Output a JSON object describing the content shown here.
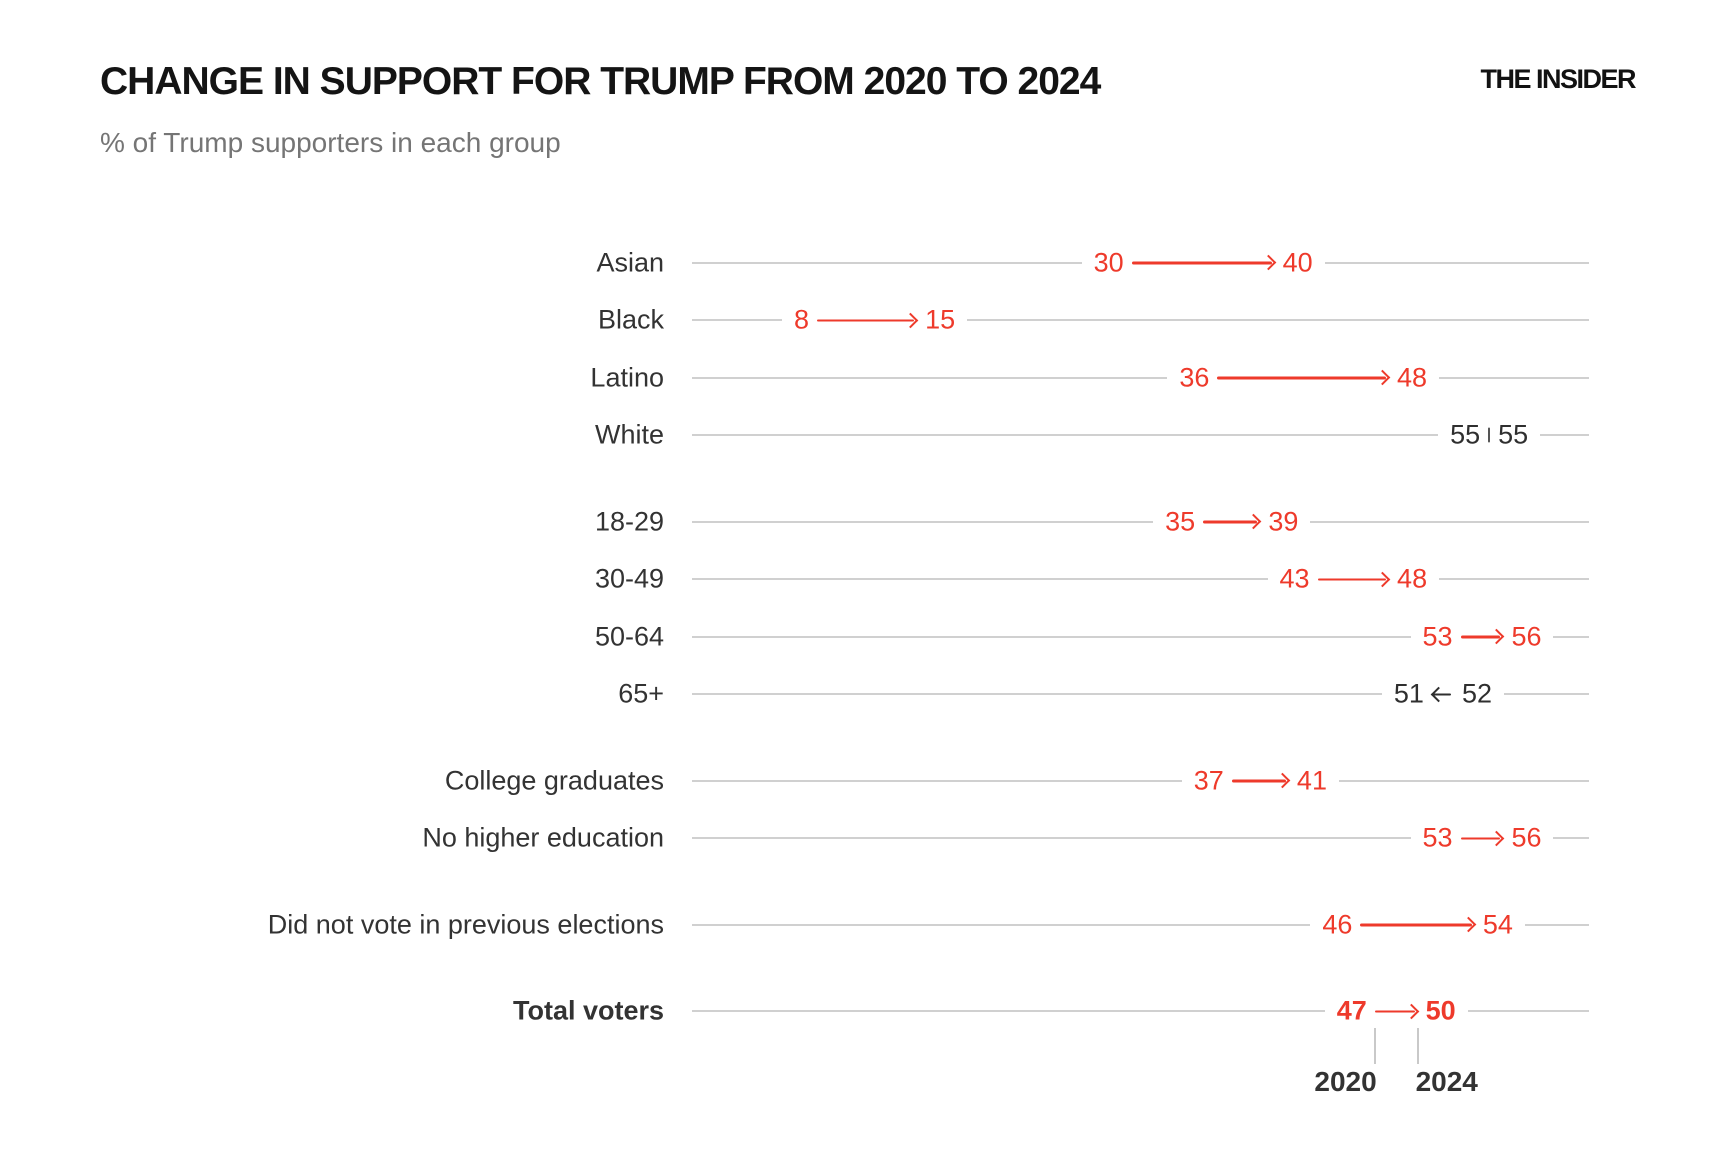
{
  "header": {
    "title": "CHANGE IN SUPPORT FOR TRUMP FROM 2020 TO 2024",
    "subtitle": "% of Trump supporters in each group",
    "brand": "THE INSIDER"
  },
  "chart_data": {
    "type": "arrow",
    "title": "CHANGE IN SUPPORT FOR TRUMP FROM 2020 TO 2024",
    "subtitle": "% of Trump supporters in each group",
    "unit": "%",
    "years": [
      "2020",
      "2024"
    ],
    "x_range": [
      0,
      60
    ],
    "grid": "per-row horizontal baselines",
    "groups": [
      {
        "rows": [
          {
            "label": "Asian",
            "v2020": 30,
            "v2024": 40
          },
          {
            "label": "Black",
            "v2020": 8,
            "v2024": 15
          },
          {
            "label": "Latino",
            "v2020": 36,
            "v2024": 48
          },
          {
            "label": "White",
            "v2020": 55,
            "v2024": 55
          }
        ]
      },
      {
        "rows": [
          {
            "label": "18-29",
            "v2020": 35,
            "v2024": 39
          },
          {
            "label": "30-49",
            "v2020": 43,
            "v2024": 48
          },
          {
            "label": "50-64",
            "v2020": 53,
            "v2024": 56
          },
          {
            "label": "65+",
            "v2020": 52,
            "v2024": 51
          }
        ]
      },
      {
        "rows": [
          {
            "label": "College graduates",
            "v2020": 37,
            "v2024": 41
          },
          {
            "label": "No higher education",
            "v2020": 53,
            "v2024": 56
          }
        ]
      },
      {
        "rows": [
          {
            "label": "Did not vote in previous elections",
            "v2020": 46,
            "v2024": 54
          }
        ]
      },
      {
        "rows": [
          {
            "label": "Total voters",
            "v2020": 47,
            "v2024": 50,
            "emphasis": true
          }
        ]
      }
    ],
    "colors": {
      "increase": "#ee3a2b",
      "no_change_or_decrease": "#2f2f2f",
      "baseline": "#d0d0d0",
      "axis_tick": "#c9c9c9",
      "row_label": "#333333",
      "subtitle": "#757575",
      "title": "#141414"
    }
  }
}
